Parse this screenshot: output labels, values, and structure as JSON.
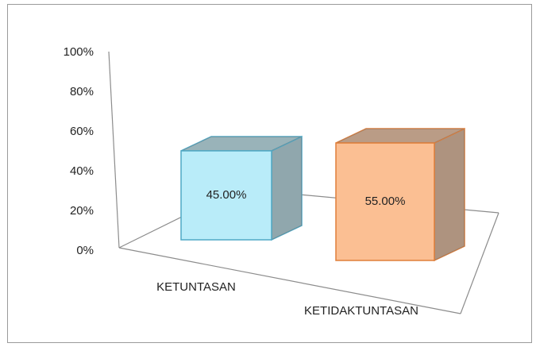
{
  "chart_data": {
    "type": "bar3d",
    "categories": [
      "KETUNTASAN",
      "KETIDAKTUNTASAN"
    ],
    "values": [
      45,
      55
    ],
    "value_labels": [
      "45.00%",
      "55.00%"
    ],
    "colors": [
      "#b9ecf9",
      "#fbbf93"
    ],
    "edge_colors": [
      "#4fa9c6",
      "#e07f3a"
    ],
    "ylim": [
      0,
      100
    ],
    "yticks": [
      {
        "value": 0,
        "label": "0%"
      },
      {
        "value": 20,
        "label": "20%"
      },
      {
        "value": 40,
        "label": "40%"
      },
      {
        "value": 60,
        "label": "60%"
      },
      {
        "value": 80,
        "label": "80%"
      },
      {
        "value": 100,
        "label": "100%"
      }
    ],
    "grid": false
  }
}
